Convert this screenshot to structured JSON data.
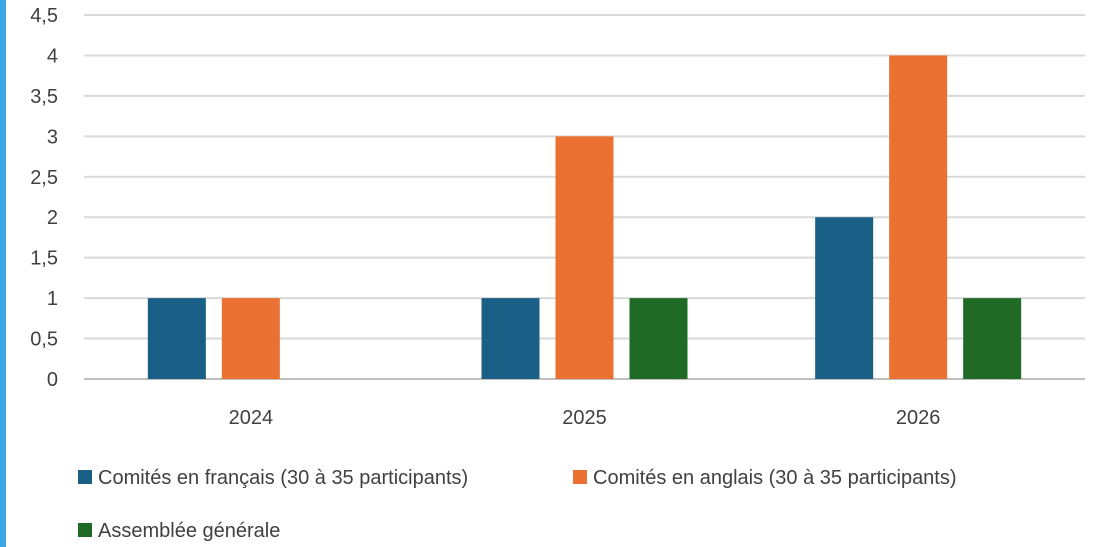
{
  "colors": {
    "accent_bar": "#3aa8e6",
    "grid": "#d9d9d9",
    "axis": "#bfbfbf"
  },
  "chart_data": {
    "type": "bar",
    "categories": [
      "2024",
      "2025",
      "2026"
    ],
    "series": [
      {
        "name": "Comités en français (30 à 35 participants)",
        "values": [
          1,
          1,
          2
        ],
        "color": "#1a5f86"
      },
      {
        "name": "Comités en anglais (30 à 35 participants)",
        "values": [
          1,
          3,
          4
        ],
        "color": "#ea7131"
      },
      {
        "name": "Assemblée générale",
        "values": [
          0,
          1,
          1
        ],
        "color": "#1f6b25"
      }
    ],
    "title": "",
    "xlabel": "",
    "ylabel": "",
    "ylim": [
      0,
      4.5
    ],
    "yticks": [
      "0",
      "0,5",
      "1",
      "1,5",
      "2",
      "2,5",
      "3",
      "3,5",
      "4",
      "4,5"
    ],
    "grid": true,
    "legend_position": "bottom"
  }
}
